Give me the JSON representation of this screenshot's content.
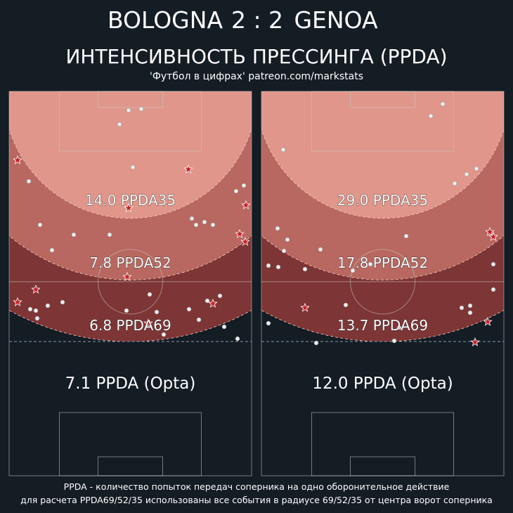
{
  "header": {
    "home": "BOLOGNA",
    "score": "2 : 2",
    "away": "GENOA",
    "subtitle": "ИНТЕНСИВНОСТЬ ПРЕССИНГА (PPDA)",
    "credit": "'Футбол в цифрах' patreon.com/markstats"
  },
  "panels": [
    {
      "zones": [
        "14.0 PPDA35",
        "7.8 PPDA52",
        "6.8 PPDA69"
      ],
      "opta": "7.1 PPDA (Opta)"
    },
    {
      "zones": [
        "29.0 PPDA35",
        "17.8 PPDA52",
        "13.7 PPDA69"
      ],
      "opta": "12.0 PPDA (Opta)"
    }
  ],
  "footer": [
    "PPDA - количество попыток передач соперника на одно оборонительное действие",
    "для расчета PPDA69/52/35 использованы все события в радиусе 69/52/35 от центра ворот соперника"
  ]
}
